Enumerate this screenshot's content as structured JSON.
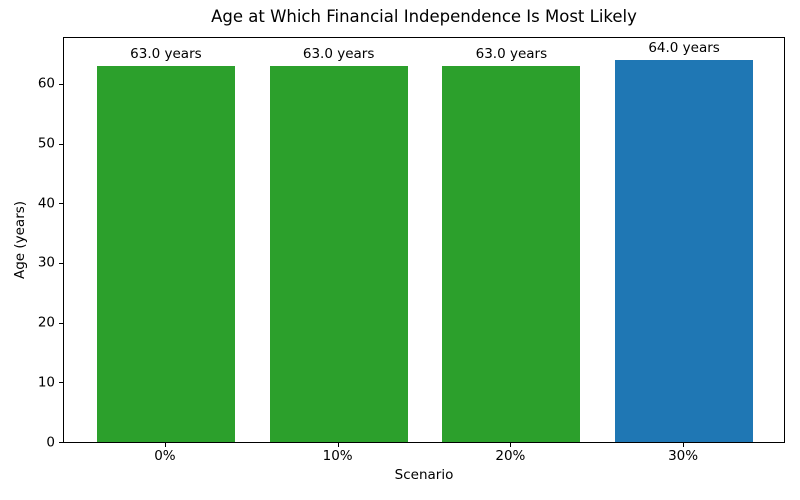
{
  "chart_data": {
    "type": "bar",
    "title": "Age at Which Financial Independence Is Most Likely",
    "xlabel": "Scenario",
    "ylabel": "Age (years)",
    "categories": [
      "0%",
      "10%",
      "20%",
      "30%"
    ],
    "values": [
      63.0,
      63.0,
      63.0,
      64.0
    ],
    "bar_labels": [
      "63.0 years",
      "63.0 years",
      "63.0 years",
      "64.0 years"
    ],
    "bar_colors": [
      "#2ca02c",
      "#2ca02c",
      "#2ca02c",
      "#1f77b4"
    ],
    "yticks": [
      0,
      10,
      20,
      30,
      40,
      50,
      60
    ],
    "ylim": [
      0,
      67.7
    ],
    "xlim_units": [
      -0.59,
      3.59
    ],
    "bar_width_ratio": 0.8,
    "grid": false,
    "legend": "none",
    "colors": {
      "green_bar": "#2ca02c",
      "blue_bar": "#1f77b4",
      "text": "#000000",
      "spine": "#000000",
      "background": "#ffffff"
    }
  }
}
